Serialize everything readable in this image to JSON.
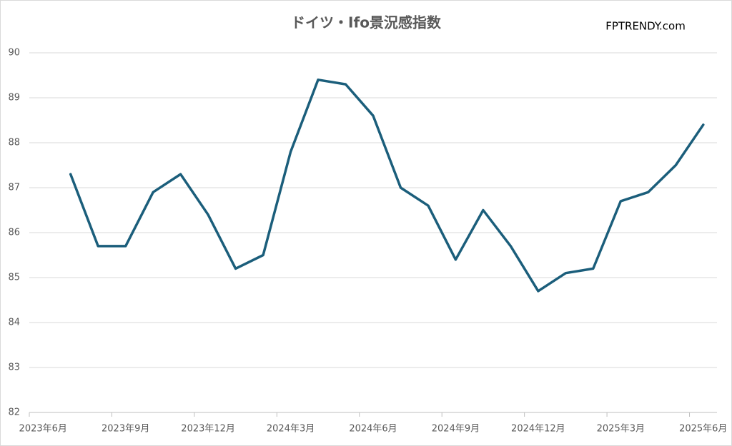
{
  "chart_data": {
    "type": "line",
    "title": "ドイツ・Ifo景況感指数",
    "watermark": "FPTRENDY.com",
    "categories": [
      "2023年6月",
      null,
      null,
      "2023年9月",
      null,
      null,
      "2023年12月",
      null,
      null,
      "2024年3月",
      null,
      null,
      "2024年6月",
      null,
      null,
      "2024年9月",
      null,
      null,
      "2024年12月",
      null,
      null,
      "2025年3月",
      null,
      null,
      "2025年6月"
    ],
    "series": [
      {
        "name": "Ifo景況感指数",
        "color": "#1b5e7b",
        "values": [
          null,
          87.3,
          85.7,
          85.7,
          86.9,
          87.3,
          86.4,
          85.2,
          85.5,
          87.8,
          89.4,
          89.3,
          88.6,
          87.0,
          86.6,
          85.4,
          86.5,
          85.7,
          84.7,
          85.1,
          85.2,
          86.7,
          86.9,
          87.5,
          88.4
        ]
      }
    ],
    "ylim": [
      82,
      90
    ],
    "yticks": [
      82,
      83,
      84,
      85,
      86,
      87,
      88,
      89,
      90
    ],
    "grid": true
  }
}
